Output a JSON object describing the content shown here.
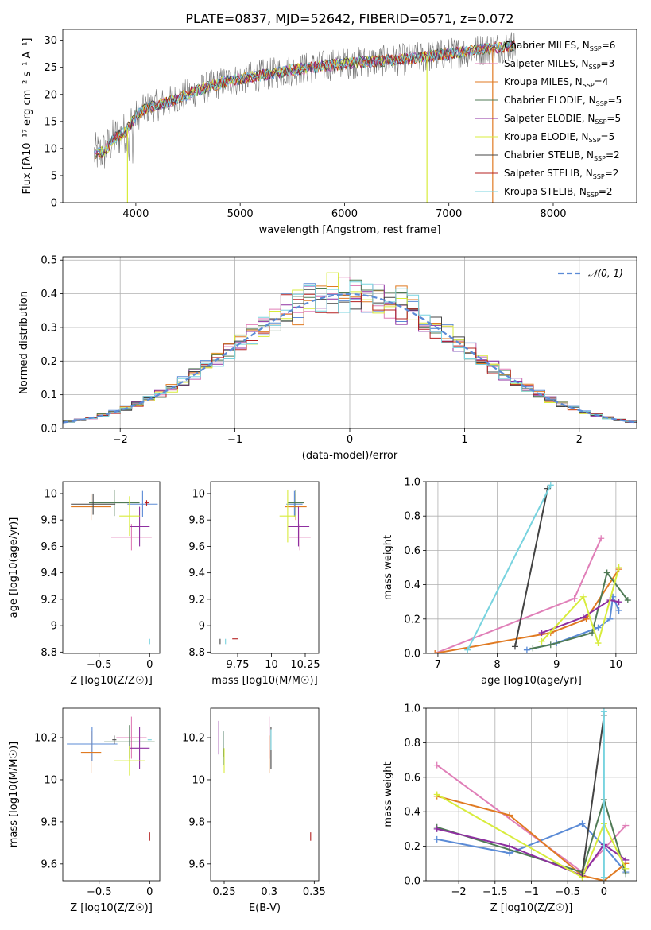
{
  "title": "PLATE=0837, MJD=52642, FIBERID=0571, z=0.072",
  "colors": [
    "#5b8bd6",
    "#e07fb8",
    "#e07a22",
    "#4f7a55",
    "#8e2fa0",
    "#d8ec3c",
    "#444444",
    "#b52020",
    "#78d3df"
  ],
  "chart_data": [
    {
      "panel": "spectrum",
      "type": "line",
      "xlabel": "wavelength [Angstrom, rest frame]",
      "ylabel": "Flux [f_λ 10^-17 erg cm^-2 s^-1 A^-1]",
      "xlim": [
        3300,
        8800
      ],
      "ylim": [
        0,
        32
      ],
      "xticks": [
        4000,
        5000,
        6000,
        7000,
        8000
      ],
      "yticks": [
        0,
        5,
        10,
        15,
        20,
        25,
        30
      ],
      "grid": false,
      "legend": [
        {
          "label": "Chabrier MILES, N",
          "sub": "SSP",
          "suffix": "=6"
        },
        {
          "label": "Salpeter MILES, N",
          "sub": "SSP",
          "suffix": "=3"
        },
        {
          "label": "Kroupa MILES, N",
          "sub": "SSP",
          "suffix": "=4"
        },
        {
          "label": "Chabrier ELODIE, N",
          "sub": "SSP",
          "suffix": "=5"
        },
        {
          "label": "Salpeter ELODIE, N",
          "sub": "SSP",
          "suffix": "=5"
        },
        {
          "label": "Kroupa ELODIE, N",
          "sub": "SSP",
          "suffix": "=5"
        },
        {
          "label": "Chabrier STELIB, N",
          "sub": "SSP",
          "suffix": "=2"
        },
        {
          "label": "Salpeter STELIB, N",
          "sub": "SSP",
          "suffix": "=2"
        },
        {
          "label": "Kroupa STELIB, N",
          "sub": "SSP",
          "suffix": "=2"
        }
      ],
      "continuum": [
        [
          3600,
          9
        ],
        [
          3700,
          9.5
        ],
        [
          3800,
          12
        ],
        [
          3900,
          13
        ],
        [
          4000,
          16
        ],
        [
          4100,
          17.5
        ],
        [
          4300,
          18.5
        ],
        [
          4500,
          20
        ],
        [
          4700,
          21.5
        ],
        [
          4900,
          22.5
        ],
        [
          5200,
          23.5
        ],
        [
          5500,
          24.5
        ],
        [
          5900,
          25.5
        ],
        [
          6200,
          26
        ],
        [
          6600,
          26.5
        ],
        [
          7000,
          27.5
        ],
        [
          7400,
          28.5
        ],
        [
          7600,
          29
        ]
      ]
    },
    {
      "panel": "residual-histogram",
      "type": "bar",
      "xlabel": "(data-model)/error",
      "ylabel": "Normed distribution",
      "xlim": [
        -2.5,
        2.5
      ],
      "ylim": [
        0,
        0.51
      ],
      "xticks": [
        -2,
        -1,
        0,
        1,
        2
      ],
      "yticks": [
        0.0,
        0.1,
        0.2,
        0.3,
        0.4,
        0.5
      ],
      "grid": true,
      "legend_label": "𝒩(0, 1)",
      "legend_position": "top-right",
      "bin_width": 0.1
    },
    {
      "panel": "age-vs-metallicity",
      "type": "scatter",
      "xlabel": "Z [log10(Z/Z☉)]",
      "ylabel": "age [log10(age/yr)]",
      "xlim": [
        -0.86,
        0.1
      ],
      "ylim": [
        8.79,
        10.09
      ],
      "xticks": [
        -0.5,
        0.0
      ],
      "yticks": [
        8.8,
        9.0,
        9.2,
        9.4,
        9.6,
        9.8,
        10.0
      ],
      "points": [
        {
          "series": 0,
          "x": -0.07,
          "y": 9.92,
          "xerr": 0.15,
          "yerr": 0.1
        },
        {
          "series": 1,
          "x": -0.18,
          "y": 9.67,
          "xerr": 0.2,
          "yerr": 0.1
        },
        {
          "series": 2,
          "x": -0.58,
          "y": 9.9,
          "xerr": 0.2,
          "yerr": 0.1
        },
        {
          "series": 3,
          "x": -0.35,
          "y": 9.93,
          "xerr": 0.25,
          "yerr": 0.1
        },
        {
          "series": 4,
          "x": -0.1,
          "y": 9.75,
          "xerr": 0.1,
          "yerr": 0.15
        },
        {
          "series": 5,
          "x": -0.2,
          "y": 9.83,
          "xerr": 0.1,
          "yerr": 0.15
        },
        {
          "series": 6,
          "x": -0.56,
          "y": 9.92,
          "xerr": 0.22,
          "yerr": 0.08
        },
        {
          "series": 7,
          "x": -0.03,
          "y": 9.93,
          "xerr": 0.02,
          "yerr": 0.02
        },
        {
          "series": 8,
          "x": 0.0,
          "y": 8.88,
          "xerr": 0.0,
          "yerr": 0.02
        }
      ]
    },
    {
      "panel": "age-vs-mass",
      "type": "scatter",
      "xlabel": "mass [log10(M/M☉)]",
      "ylabel": "",
      "xlim": [
        9.55,
        10.35
      ],
      "ylim": [
        8.79,
        10.09
      ],
      "xticks": [
        9.75,
        10.0,
        10.25
      ],
      "yticks": [
        8.8,
        9.0,
        9.2,
        9.4,
        9.6,
        9.8,
        10.0
      ],
      "points": [
        {
          "series": 0,
          "x": 10.17,
          "y": 9.92,
          "xerr": 0.06,
          "yerr": 0.1
        },
        {
          "series": 1,
          "x": 10.21,
          "y": 9.67,
          "xerr": 0.08,
          "yerr": 0.1
        },
        {
          "series": 2,
          "x": 10.18,
          "y": 9.9,
          "xerr": 0.08,
          "yerr": 0.1
        },
        {
          "series": 3,
          "x": 10.18,
          "y": 9.93,
          "xerr": 0.06,
          "yerr": 0.1
        },
        {
          "series": 4,
          "x": 10.2,
          "y": 9.75,
          "xerr": 0.08,
          "yerr": 0.15
        },
        {
          "series": 5,
          "x": 10.12,
          "y": 9.83,
          "xerr": 0.06,
          "yerr": 0.2
        },
        {
          "series": 6,
          "x": 9.62,
          "y": 8.88,
          "xerr": 0.0,
          "yerr": 0.02
        },
        {
          "series": 7,
          "x": 9.73,
          "y": 8.9,
          "xerr": 0.02,
          "yerr": 0.0
        },
        {
          "series": 8,
          "x": 9.66,
          "y": 8.88,
          "xerr": 0.0,
          "yerr": 0.02
        }
      ]
    },
    {
      "panel": "mass-weight-vs-age",
      "type": "line",
      "xlabel": "age [log10(age/yr)]",
      "ylabel": "mass weight",
      "xlim": [
        6.8,
        10.35
      ],
      "ylim": [
        0,
        1.0
      ],
      "xticks": [
        7,
        8,
        9,
        10
      ],
      "yticks": [
        0.0,
        0.2,
        0.4,
        0.6,
        0.8,
        1.0
      ],
      "grid": true,
      "series": [
        {
          "name": "Chabrier MILES",
          "points": [
            [
              8.5,
              0.02
            ],
            [
              9.0,
              0.06
            ],
            [
              9.7,
              0.15
            ],
            [
              9.9,
              0.2
            ],
            [
              9.95,
              0.33
            ],
            [
              10.05,
              0.25
            ]
          ]
        },
        {
          "name": "Salpeter MILES",
          "points": [
            [
              6.95,
              0.0
            ],
            [
              9.3,
              0.32
            ],
            [
              9.75,
              0.67
            ]
          ]
        },
        {
          "name": "Kroupa MILES",
          "points": [
            [
              6.95,
              0.0
            ],
            [
              8.9,
              0.12
            ],
            [
              9.5,
              0.2
            ],
            [
              10.05,
              0.49
            ]
          ]
        },
        {
          "name": "Chabrier ELODIE",
          "points": [
            [
              8.6,
              0.03
            ],
            [
              8.9,
              0.05
            ],
            [
              9.6,
              0.12
            ],
            [
              9.85,
              0.47
            ],
            [
              10.2,
              0.31
            ]
          ]
        },
        {
          "name": "Salpeter ELODIE",
          "points": [
            [
              8.75,
              0.12
            ],
            [
              9.45,
              0.21
            ],
            [
              9.9,
              0.31
            ],
            [
              10.05,
              0.3
            ]
          ]
        },
        {
          "name": "Kroupa ELODIE",
          "points": [
            [
              8.75,
              0.07
            ],
            [
              9.45,
              0.33
            ],
            [
              9.7,
              0.06
            ],
            [
              10.05,
              0.5
            ]
          ]
        },
        {
          "name": "Chabrier STELIB",
          "points": [
            [
              8.3,
              0.04
            ],
            [
              8.85,
              0.96
            ]
          ]
        },
        {
          "name": "Salpeter STELIB",
          "points": []
        },
        {
          "name": "Kroupa STELIB",
          "points": [
            [
              7.5,
              0.02
            ],
            [
              8.9,
              0.98
            ]
          ]
        }
      ]
    },
    {
      "panel": "mass-vs-metallicity",
      "type": "scatter",
      "xlabel": "Z [log10(Z/Z☉)]",
      "ylabel": "mass [log10(M/M☉)]",
      "xlim": [
        -0.86,
        0.1
      ],
      "ylim": [
        9.52,
        10.34
      ],
      "xticks": [
        -0.5,
        0.0
      ],
      "yticks": [
        9.6,
        9.8,
        10.0,
        10.2
      ],
      "points": [
        {
          "series": 0,
          "x": -0.57,
          "y": 10.17,
          "xerr": 0.25,
          "yerr": 0.08
        },
        {
          "series": 1,
          "x": -0.18,
          "y": 10.2,
          "xerr": 0.15,
          "yerr": 0.1
        },
        {
          "series": 2,
          "x": -0.58,
          "y": 10.13,
          "xerr": 0.1,
          "yerr": 0.1
        },
        {
          "series": 3,
          "x": -0.2,
          "y": 10.18,
          "xerr": 0.25,
          "yerr": 0.08
        },
        {
          "series": 4,
          "x": -0.1,
          "y": 10.15,
          "xerr": 0.1,
          "yerr": 0.1
        },
        {
          "series": 5,
          "x": -0.2,
          "y": 10.09,
          "xerr": 0.15,
          "yerr": 0.07
        },
        {
          "series": 6,
          "x": -0.35,
          "y": 10.19,
          "xerr": 0.02,
          "yerr": 0.02
        },
        {
          "series": 7,
          "x": 0.0,
          "y": 9.73,
          "xerr": 0.0,
          "yerr": 0.02
        },
        {
          "series": 8,
          "x": 0.0,
          "y": 10.19,
          "xerr": 0.02,
          "yerr": 0.0
        }
      ]
    },
    {
      "panel": "mass-vs-extinction",
      "type": "scatter",
      "xlabel": "E(B-V)",
      "ylabel": "",
      "xlim": [
        0.235,
        0.355
      ],
      "ylim": [
        9.52,
        10.34
      ],
      "xticks": [
        0.25,
        0.3,
        0.35
      ],
      "yticks": [
        9.6,
        9.8,
        10.0,
        10.2
      ],
      "points": [
        {
          "series": 0,
          "x": 0.249,
          "y": 10.15,
          "xerr": 0.0,
          "yerr": 0.08
        },
        {
          "series": 1,
          "x": 0.3,
          "y": 10.2,
          "xerr": 0.0,
          "yerr": 0.1
        },
        {
          "series": 2,
          "x": 0.3,
          "y": 10.12,
          "xerr": 0.0,
          "yerr": 0.09
        },
        {
          "series": 3,
          "x": 0.249,
          "y": 10.17,
          "xerr": 0.0,
          "yerr": 0.06
        },
        {
          "series": 4,
          "x": 0.244,
          "y": 10.2,
          "xerr": 0.0,
          "yerr": 0.08
        },
        {
          "series": 5,
          "x": 0.25,
          "y": 10.09,
          "xerr": 0.0,
          "yerr": 0.06
        },
        {
          "series": 6,
          "x": 0.302,
          "y": 10.15,
          "xerr": 0.0,
          "yerr": 0.1
        },
        {
          "series": 7,
          "x": 0.346,
          "y": 9.73,
          "xerr": 0.0,
          "yerr": 0.02
        },
        {
          "series": 8,
          "x": 0.302,
          "y": 10.19,
          "xerr": 0.0,
          "yerr": 0.05
        }
      ]
    },
    {
      "panel": "mass-weight-vs-metallicity",
      "type": "line",
      "xlabel": "Z [log10(Z/Z☉)]",
      "ylabel": "mass weight",
      "xlim": [
        -2.45,
        0.45
      ],
      "ylim": [
        0,
        1.0
      ],
      "xticks": [
        -2.0,
        -1.5,
        -1.0,
        -0.5,
        0.0
      ],
      "yticks": [
        0.0,
        0.2,
        0.4,
        0.6,
        0.8,
        1.0
      ],
      "grid": true,
      "series": [
        {
          "name": "Chabrier MILES",
          "points": [
            [
              -2.3,
              0.24
            ],
            [
              -1.3,
              0.16
            ],
            [
              -0.3,
              0.33
            ],
            [
              0.0,
              0.2
            ],
            [
              0.3,
              0.05
            ]
          ]
        },
        {
          "name": "Salpeter MILES",
          "points": [
            [
              -2.3,
              0.67
            ],
            [
              -0.3,
              0.05
            ],
            [
              0.3,
              0.32
            ]
          ]
        },
        {
          "name": "Kroupa MILES",
          "points": [
            [
              -2.3,
              0.49
            ],
            [
              -1.3,
              0.38
            ],
            [
              -0.3,
              0.03
            ],
            [
              0.0,
              0.0
            ],
            [
              0.3,
              0.1
            ]
          ]
        },
        {
          "name": "Chabrier ELODIE",
          "points": [
            [
              -2.3,
              0.31
            ],
            [
              -0.3,
              0.05
            ],
            [
              0.0,
              0.47
            ],
            [
              0.3,
              0.04
            ]
          ]
        },
        {
          "name": "Salpeter ELODIE",
          "points": [
            [
              -2.3,
              0.3
            ],
            [
              -1.3,
              0.2
            ],
            [
              -0.3,
              0.03
            ],
            [
              0.0,
              0.21
            ],
            [
              0.3,
              0.12
            ]
          ]
        },
        {
          "name": "Kroupa ELODIE",
          "points": [
            [
              -2.3,
              0.5
            ],
            [
              -0.3,
              0.02
            ],
            [
              0.0,
              0.33
            ],
            [
              0.3,
              0.07
            ]
          ]
        },
        {
          "name": "Chabrier STELIB",
          "points": [
            [
              -0.3,
              0.04
            ],
            [
              0.0,
              0.96
            ]
          ]
        },
        {
          "name": "Salpeter STELIB",
          "points": []
        },
        {
          "name": "Kroupa STELIB",
          "points": [
            [
              0.0,
              0.02
            ],
            [
              0.0,
              0.98
            ]
          ]
        }
      ]
    }
  ]
}
